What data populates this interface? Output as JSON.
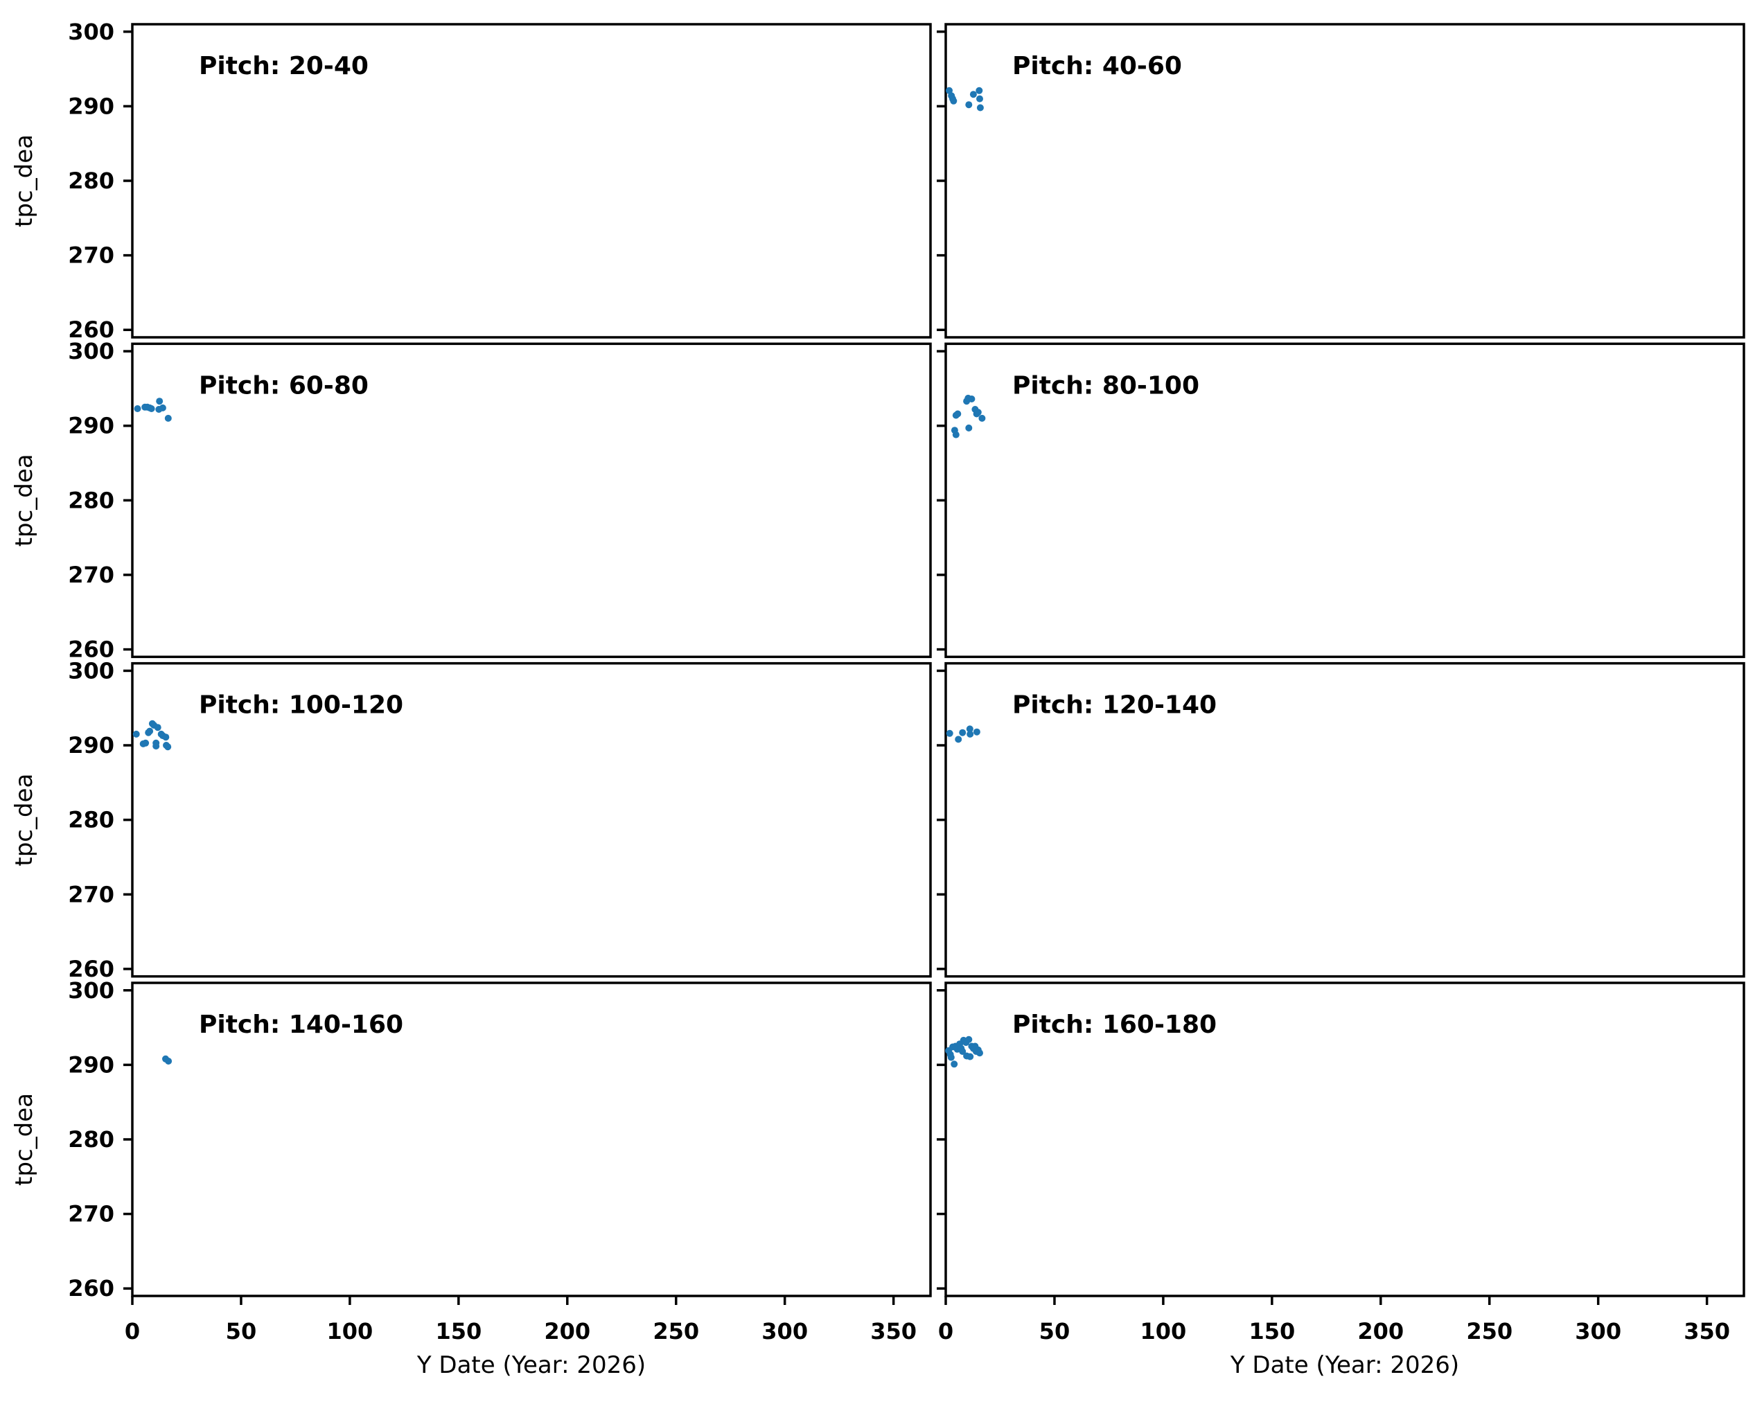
{
  "figure": {
    "background": "#ffffff",
    "spine_color": "#000000",
    "marker_color": "#1f77b4"
  },
  "chart_data": {
    "type": "scatter",
    "layout": {
      "rows": 4,
      "cols": 2,
      "shared_x": true,
      "shared_y": true
    },
    "xlabel": "Y Date (Year: 2026)",
    "ylabel": "tpc_dea",
    "xlim": [
      0,
      367
    ],
    "ylim": [
      259,
      301
    ],
    "xticks": [
      0,
      50,
      100,
      150,
      200,
      250,
      300,
      350
    ],
    "yticks": [
      260,
      270,
      280,
      290,
      300
    ],
    "grid": false,
    "legend": "none",
    "marker_color": "#1f77b4",
    "subplots": [
      {
        "title": "Pitch: 20-40",
        "x": [],
        "y": []
      },
      {
        "title": "Pitch: 40-60",
        "x": [
          1.6,
          2.6,
          3.2,
          3.6,
          10.6,
          12.7,
          15.4,
          15.6,
          15.9
        ],
        "y": [
          292.1,
          291.4,
          291.0,
          290.7,
          290.2,
          291.6,
          292.1,
          291.0,
          289.8
        ]
      },
      {
        "title": "Pitch: 60-80",
        "x": [
          2.4,
          5.8,
          6.9,
          8.0,
          8.8,
          12.2,
          12.5,
          14.0,
          16.5
        ],
        "y": [
          292.3,
          292.5,
          292.5,
          292.4,
          292.3,
          292.2,
          293.3,
          292.4,
          291.0
        ]
      },
      {
        "title": "Pitch: 80-100",
        "x": [
          4.1,
          4.7,
          4.7,
          5.5,
          9.6,
          10.3,
          10.6,
          11.9,
          13.5,
          14.2,
          14.9,
          16.7
        ],
        "y": [
          289.4,
          288.8,
          291.4,
          291.6,
          293.3,
          293.7,
          289.7,
          293.6,
          292.2,
          291.6,
          291.8,
          291.0
        ]
      },
      {
        "title": "Pitch: 100-120",
        "x": [
          1.8,
          5.0,
          6.1,
          7.4,
          8.0,
          9.2,
          9.9,
          10.9,
          10.9,
          11.7,
          13.3,
          14.0,
          15.4,
          15.6,
          16.3
        ],
        "y": [
          291.5,
          290.2,
          290.3,
          291.7,
          291.9,
          292.9,
          292.7,
          290.3,
          289.9,
          292.4,
          291.5,
          291.3,
          291.1,
          290.0,
          289.8
        ]
      },
      {
        "title": "Pitch: 120-140",
        "x": [
          1.8,
          5.8,
          7.7,
          11.1,
          11.2,
          14.3
        ],
        "y": [
          291.6,
          290.8,
          291.7,
          292.2,
          291.5,
          291.8
        ]
      },
      {
        "title": "Pitch: 140-160",
        "x": [
          15.3,
          16.6
        ],
        "y": [
          290.8,
          290.5
        ]
      },
      {
        "title": "Pitch: 160-180",
        "x": [
          1.3,
          2.1,
          2.5,
          3.2,
          3.9,
          4.5,
          5.3,
          6.4,
          7.1,
          7.7,
          8.2,
          9.3,
          9.6,
          10.6,
          11.2,
          11.9,
          12.7,
          13.5,
          14.0,
          14.9,
          15.6
        ],
        "y": [
          291.9,
          291.4,
          291.0,
          292.4,
          290.1,
          292.5,
          292.1,
          292.8,
          292.2,
          291.8,
          293.3,
          293.0,
          291.2,
          293.4,
          291.1,
          292.5,
          292.2,
          292.5,
          291.8,
          292.0,
          291.6
        ]
      }
    ]
  }
}
